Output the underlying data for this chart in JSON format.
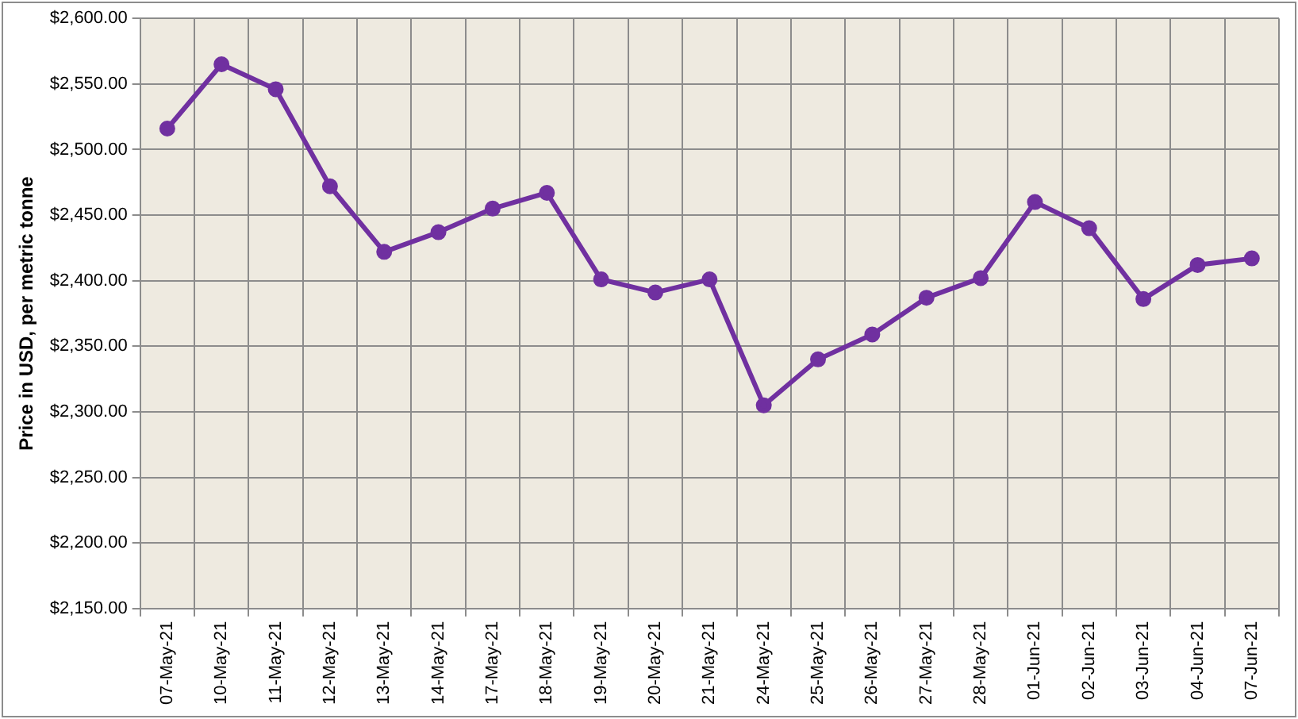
{
  "chart_data": {
    "type": "line",
    "ylabel": "Price in USD, per metric tonne",
    "categories": [
      "07-May-21",
      "10-May-21",
      "11-May-21",
      "12-May-21",
      "13-May-21",
      "14-May-21",
      "17-May-21",
      "18-May-21",
      "19-May-21",
      "20-May-21",
      "21-May-21",
      "24-May-21",
      "25-May-21",
      "26-May-21",
      "27-May-21",
      "28-May-21",
      "01-Jun-21",
      "02-Jun-21",
      "03-Jun-21",
      "04-Jun-21",
      "07-Jun-21"
    ],
    "series": [
      {
        "color": "#7030a0",
        "values": [
          2516,
          2565,
          2546,
          2472,
          2422,
          2437,
          2455,
          2467,
          2401,
          2391,
          2401,
          2305,
          2340,
          2359,
          2387,
          2402,
          2460,
          2440,
          2386,
          2412,
          2417
        ]
      }
    ],
    "ylim": [
      2150,
      2600
    ],
    "yticks": [
      {
        "value": 2150,
        "label": "$2,150.00"
      },
      {
        "value": 2200,
        "label": "$2,200.00"
      },
      {
        "value": 2250,
        "label": "$2,250.00"
      },
      {
        "value": 2300,
        "label": "$2,300.00"
      },
      {
        "value": 2350,
        "label": "$2,350.00"
      },
      {
        "value": 2400,
        "label": "$2,400.00"
      },
      {
        "value": 2450,
        "label": "$2,450.00"
      },
      {
        "value": 2500,
        "label": "$2,500.00"
      },
      {
        "value": 2550,
        "label": "$2,550.00"
      },
      {
        "value": 2600,
        "label": "$2,600.00"
      }
    ],
    "grid": true,
    "legend": false,
    "marker": "circle",
    "line_style": "solid"
  }
}
